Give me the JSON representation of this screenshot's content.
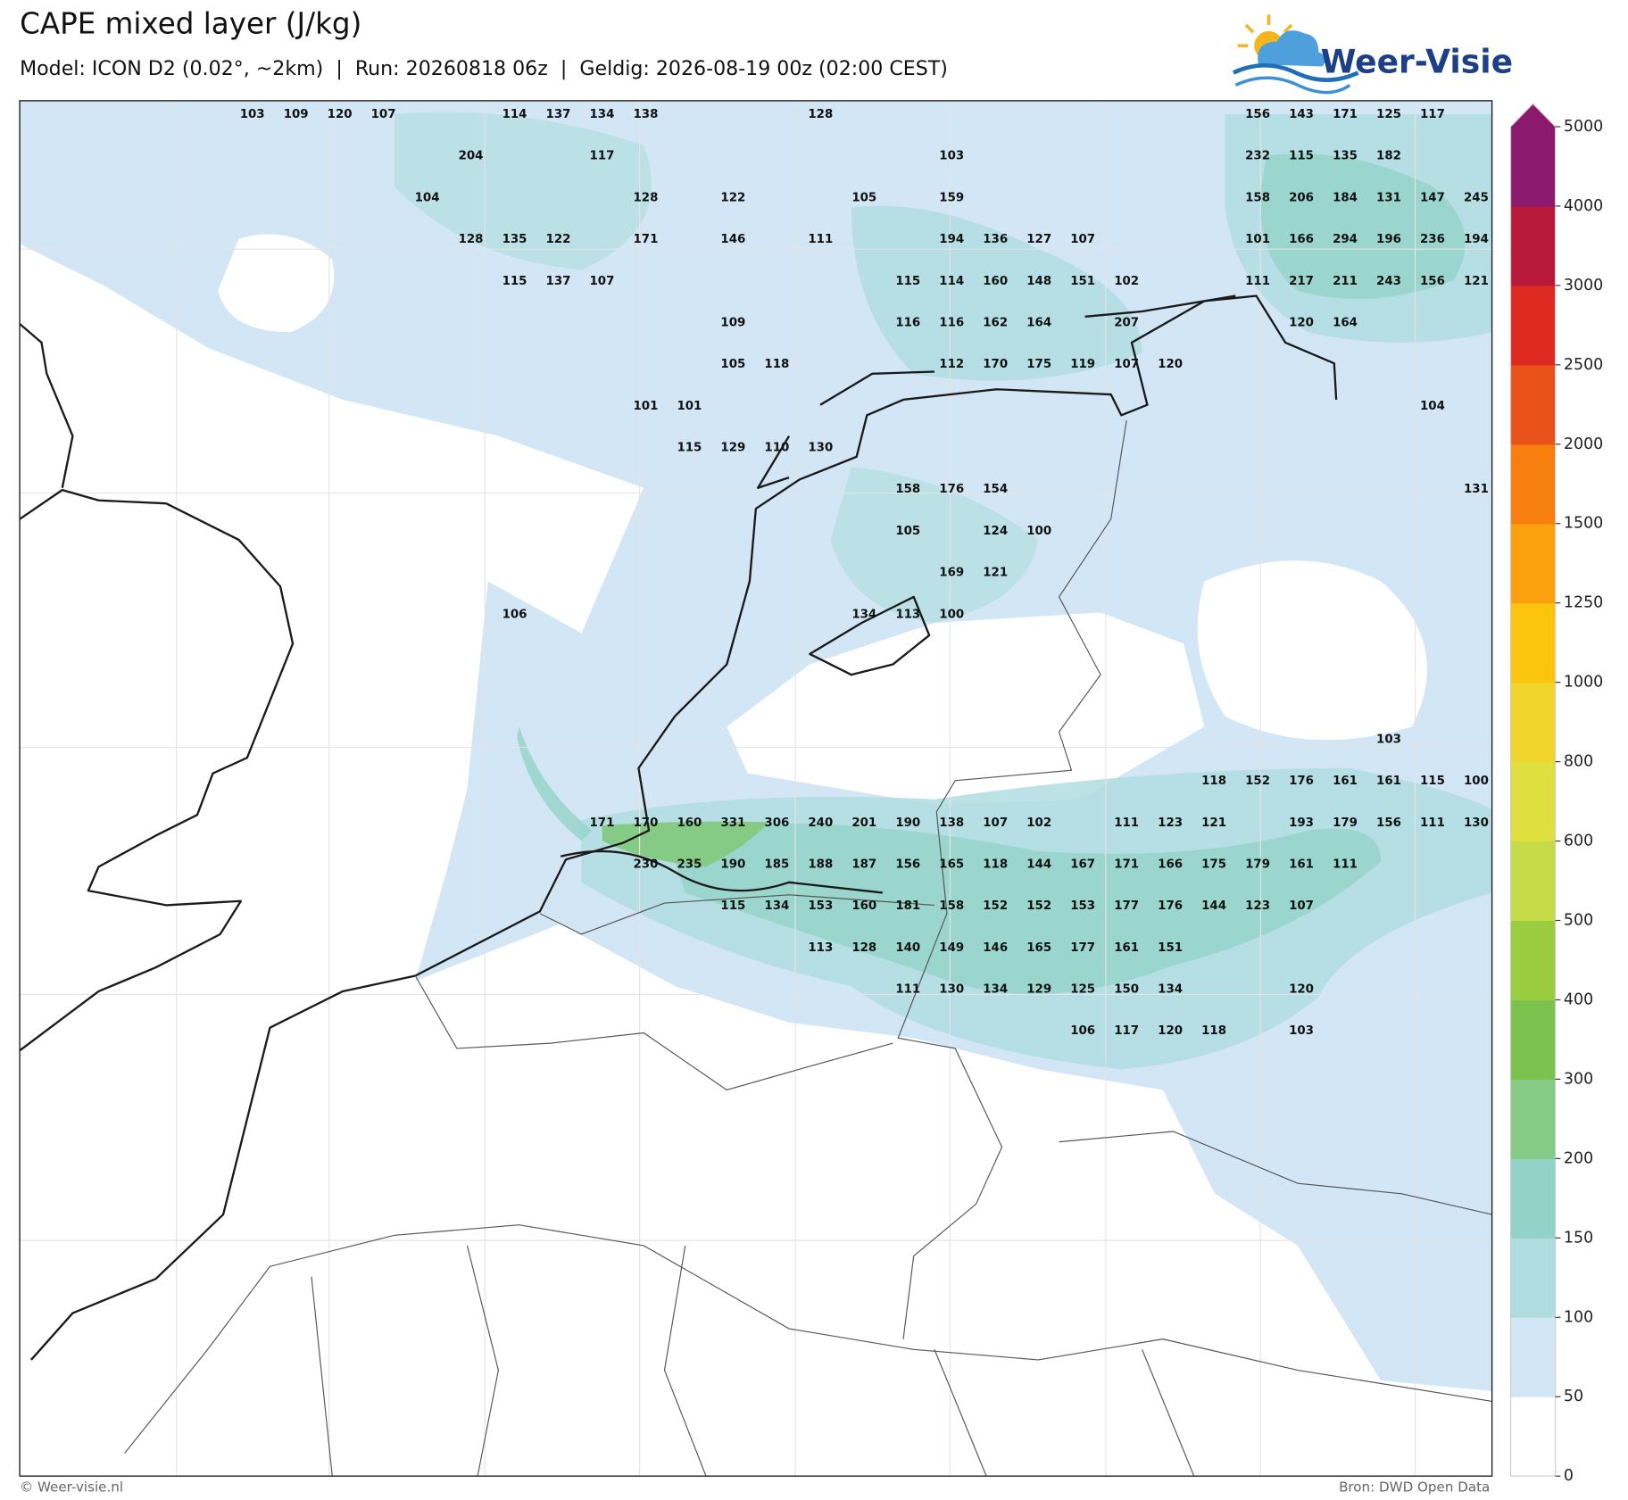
{
  "header": {
    "title": "CAPE mixed layer (J/kg)",
    "subtitle": "Model: ICON D2 (0.02°, ~2km)  |  Run: 20260818 06z  |  Geldig: 2026-08-19 00z (02:00 CEST)"
  },
  "logo": {
    "text": "Weer-Visie"
  },
  "labels": {
    "rows": [
      [
        103,
        109,
        120,
        107,
        null,
        null,
        114,
        137,
        134,
        138,
        null,
        null,
        null,
        128,
        null,
        null,
        null,
        null,
        null,
        null,
        null,
        null,
        null,
        156,
        143,
        171,
        125,
        117,
        null
      ],
      [
        null,
        null,
        null,
        null,
        null,
        204,
        null,
        null,
        117,
        null,
        null,
        null,
        null,
        null,
        null,
        null,
        103,
        null,
        null,
        null,
        null,
        null,
        null,
        232,
        115,
        135,
        182,
        null,
        null
      ],
      [
        null,
        null,
        null,
        null,
        104,
        null,
        null,
        null,
        null,
        128,
        null,
        122,
        null,
        null,
        105,
        null,
        159,
        null,
        null,
        null,
        null,
        null,
        null,
        158,
        206,
        184,
        131,
        147,
        245
      ],
      [
        null,
        null,
        null,
        null,
        null,
        128,
        135,
        122,
        null,
        171,
        null,
        146,
        null,
        111,
        null,
        null,
        194,
        136,
        127,
        107,
        null,
        null,
        null,
        101,
        166,
        294,
        196,
        236,
        194
      ],
      [
        null,
        null,
        null,
        null,
        null,
        null,
        115,
        137,
        107,
        null,
        null,
        null,
        null,
        null,
        null,
        115,
        114,
        160,
        148,
        151,
        102,
        null,
        null,
        111,
        217,
        211,
        243,
        156,
        121
      ],
      [
        null,
        null,
        null,
        null,
        null,
        null,
        null,
        null,
        null,
        null,
        null,
        109,
        null,
        null,
        null,
        116,
        116,
        162,
        164,
        null,
        207,
        null,
        null,
        null,
        120,
        164,
        null,
        null,
        null
      ],
      [
        null,
        null,
        null,
        null,
        null,
        null,
        null,
        null,
        null,
        null,
        null,
        105,
        118,
        null,
        null,
        null,
        112,
        170,
        175,
        119,
        107,
        120,
        null,
        null,
        null,
        null,
        null,
        null,
        null
      ],
      [
        null,
        null,
        null,
        null,
        null,
        null,
        null,
        null,
        null,
        101,
        101,
        null,
        null,
        null,
        null,
        null,
        null,
        null,
        null,
        null,
        null,
        null,
        null,
        null,
        null,
        null,
        null,
        104,
        null
      ],
      [
        null,
        null,
        null,
        null,
        null,
        null,
        null,
        null,
        null,
        null,
        115,
        129,
        110,
        130,
        null,
        null,
        null,
        null,
        null,
        null,
        null,
        null,
        null,
        null,
        null,
        null,
        null,
        null,
        null
      ],
      [
        null,
        null,
        null,
        null,
        null,
        null,
        null,
        null,
        null,
        null,
        null,
        null,
        null,
        null,
        null,
        158,
        176,
        154,
        null,
        null,
        null,
        null,
        null,
        null,
        null,
        null,
        null,
        null,
        131
      ],
      [
        null,
        null,
        null,
        null,
        null,
        null,
        null,
        null,
        null,
        null,
        null,
        null,
        null,
        null,
        null,
        105,
        null,
        124,
        100,
        null,
        null,
        null,
        null,
        null,
        null,
        null,
        null,
        null,
        null
      ],
      [
        null,
        null,
        null,
        null,
        null,
        null,
        null,
        null,
        null,
        null,
        null,
        null,
        null,
        null,
        null,
        null,
        169,
        121,
        null,
        null,
        null,
        null,
        null,
        null,
        null,
        null,
        null,
        null,
        null
      ],
      [
        null,
        null,
        null,
        null,
        null,
        null,
        106,
        null,
        null,
        null,
        null,
        null,
        null,
        null,
        134,
        113,
        100,
        null,
        null,
        null,
        null,
        null,
        null,
        null,
        null,
        null,
        null,
        null,
        null
      ],
      [
        null,
        null,
        null,
        null,
        null,
        null,
        null,
        null,
        null,
        null,
        null,
        null,
        null,
        null,
        null,
        null,
        null,
        null,
        null,
        null,
        null,
        null,
        null,
        null,
        null,
        null,
        null,
        null,
        null
      ],
      [
        null,
        null,
        null,
        null,
        null,
        null,
        null,
        null,
        null,
        null,
        null,
        null,
        null,
        null,
        null,
        null,
        null,
        null,
        null,
        null,
        null,
        null,
        null,
        null,
        null,
        null,
        null,
        null,
        null
      ],
      [
        null,
        null,
        null,
        null,
        null,
        null,
        null,
        null,
        null,
        null,
        null,
        null,
        null,
        null,
        null,
        null,
        null,
        null,
        null,
        null,
        null,
        null,
        null,
        null,
        null,
        null,
        103,
        null,
        null
      ],
      [
        null,
        null,
        null,
        null,
        null,
        null,
        null,
        null,
        null,
        null,
        null,
        null,
        null,
        null,
        null,
        null,
        null,
        null,
        null,
        null,
        null,
        null,
        118,
        152,
        176,
        161,
        161,
        115,
        100
      ],
      [
        null,
        null,
        null,
        null,
        null,
        null,
        null,
        null,
        171,
        170,
        160,
        331,
        306,
        240,
        201,
        190,
        138,
        107,
        102,
        null,
        111,
        123,
        121,
        null,
        193,
        179,
        156,
        111,
        130
      ],
      [
        null,
        null,
        null,
        null,
        null,
        null,
        null,
        null,
        null,
        230,
        235,
        190,
        185,
        188,
        187,
        156,
        165,
        118,
        144,
        167,
        171,
        166,
        175,
        179,
        161,
        111,
        null,
        null,
        null
      ],
      [
        null,
        null,
        null,
        null,
        null,
        null,
        null,
        null,
        null,
        null,
        null,
        115,
        134,
        153,
        160,
        181,
        158,
        152,
        152,
        153,
        177,
        176,
        144,
        123,
        107,
        null,
        null,
        null,
        null
      ],
      [
        null,
        null,
        null,
        null,
        null,
        null,
        null,
        null,
        null,
        null,
        null,
        null,
        null,
        113,
        128,
        140,
        149,
        146,
        165,
        177,
        161,
        151,
        null,
        null,
        null,
        null,
        null,
        null,
        null
      ],
      [
        null,
        null,
        null,
        null,
        null,
        null,
        null,
        null,
        null,
        null,
        null,
        null,
        null,
        null,
        null,
        111,
        130,
        134,
        129,
        125,
        150,
        134,
        null,
        null,
        120,
        null,
        null,
        null,
        null
      ],
      [
        null,
        null,
        null,
        null,
        null,
        null,
        null,
        null,
        null,
        null,
        null,
        null,
        null,
        null,
        null,
        null,
        null,
        null,
        null,
        106,
        117,
        120,
        118,
        null,
        103,
        null,
        null,
        null,
        null
      ]
    ]
  },
  "colorbar": {
    "ticks": [
      0,
      50,
      100,
      150,
      200,
      300,
      400,
      500,
      600,
      800,
      1000,
      1250,
      1500,
      2000,
      2500,
      3000,
      4000,
      5000
    ],
    "colors": [
      "#ffffff",
      "#d2e6f5",
      "#b0dde0",
      "#93d3c7",
      "#86cb85",
      "#7cc24f",
      "#9bcb3e",
      "#c5dc48",
      "#dfe03f",
      "#f2d52a",
      "#fbc50d",
      "#fba10e",
      "#f67f0f",
      "#e9521b",
      "#df2a21",
      "#b9193a",
      "#8b1a6f"
    ],
    "extend_color": "#8b1a6f"
  },
  "footer": {
    "left": "© Weer-visie.nl",
    "right": "Bron: DWD Open Data"
  }
}
